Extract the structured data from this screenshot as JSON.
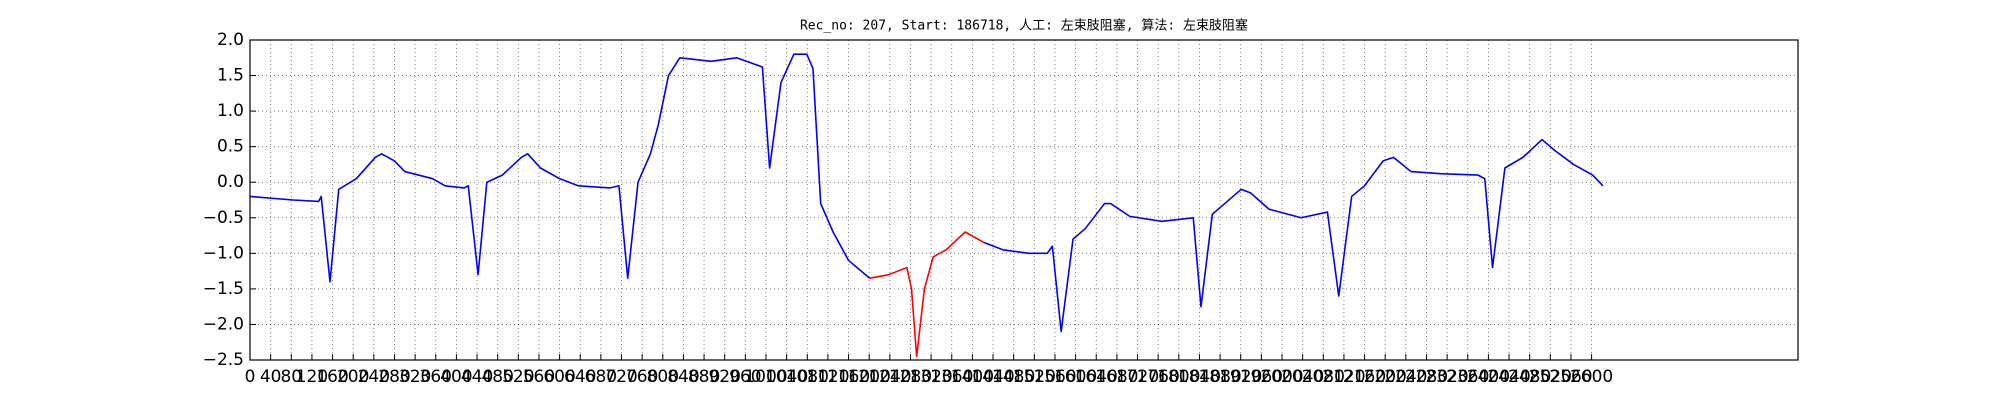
{
  "chart_data": {
    "type": "line",
    "title": "Rec_no: 207, Start: 186718, 人工: 左束肢阻塞, 算法: 左束肢阻塞",
    "x": [
      0,
      84,
      133,
      138,
      155,
      172,
      206,
      243,
      255,
      280,
      300,
      354,
      378,
      415,
      423,
      442,
      459,
      489,
      526,
      538,
      563,
      600,
      636,
      698,
      715,
      732,
      752,
      776,
      791,
      811,
      833,
      894,
      943,
      993,
      1007,
      1029,
      1054,
      1079,
      1091,
      1106,
      1130,
      1160,
      1201,
      1238,
      1273,
      1282,
      1292,
      1307,
      1324,
      1349,
      1386,
      1423,
      1459,
      1509,
      1545,
      1555,
      1572,
      1595,
      1619,
      1656,
      1668,
      1705,
      1767,
      1828,
      1843,
      1865,
      1889,
      1921,
      1939,
      1975,
      2037,
      2088,
      2110,
      2135,
      2160,
      2196,
      2216,
      2250,
      2307,
      2380,
      2393,
      2408,
      2432,
      2467,
      2504,
      2528,
      2565,
      2602,
      2622
    ],
    "series": [
      {
        "color": "#0000ff",
        "values": [
          -0.2,
          -0.25,
          -0.27,
          -0.2,
          -1.4,
          -0.1,
          0.05,
          0.35,
          0.4,
          0.3,
          0.15,
          0.05,
          -0.05,
          -0.08,
          -0.05,
          -1.3,
          0.0,
          0.1,
          0.35,
          0.4,
          0.2,
          0.05,
          -0.05,
          -0.08,
          -0.05,
          -1.35,
          0.0,
          0.4,
          0.8,
          1.5,
          1.75,
          1.7,
          1.75,
          1.62,
          0.2,
          1.4,
          1.8,
          1.8,
          1.6,
          -0.3,
          -0.7,
          -1.1,
          -1.35,
          null,
          null,
          null,
          null,
          null,
          null,
          null,
          null,
          -0.85,
          -0.95,
          -1.0,
          -1.0,
          -0.9,
          -2.1,
          -0.8,
          -0.65,
          -0.3,
          -0.3,
          -0.48,
          -0.55,
          -0.5,
          -1.75,
          -0.45,
          -0.3,
          -0.1,
          -0.15,
          -0.38,
          -0.5,
          -0.42,
          -1.6,
          -0.2,
          -0.05,
          0.3,
          0.35,
          0.15,
          0.12,
          0.1,
          0.05,
          -1.2,
          0.2,
          0.35,
          0.6,
          0.45,
          0.25,
          0.1,
          -0.05
        ]
      },
      {
        "color": "#ff0000",
        "values": [
          null,
          null,
          null,
          null,
          null,
          null,
          null,
          null,
          null,
          null,
          null,
          null,
          null,
          null,
          null,
          null,
          null,
          null,
          null,
          null,
          null,
          null,
          null,
          null,
          null,
          null,
          null,
          null,
          null,
          null,
          null,
          null,
          null,
          null,
          null,
          null,
          null,
          null,
          null,
          null,
          null,
          null,
          -1.35,
          -1.3,
          -1.2,
          -1.5,
          -2.45,
          -1.5,
          -1.05,
          -0.95,
          -0.7,
          -0.85,
          null,
          null,
          null,
          null,
          null,
          null,
          null,
          null,
          null,
          null,
          null,
          null,
          null,
          null,
          null,
          null,
          null,
          null,
          null,
          null,
          null,
          null,
          null,
          null,
          null,
          null,
          null,
          null,
          null,
          null,
          null,
          null,
          null,
          null,
          null,
          null,
          null
        ]
      }
    ],
    "xlim": [
      0,
      3000
    ],
    "xticks": [
      0,
      40,
      80,
      120,
      160,
      200,
      240,
      280,
      320,
      360,
      400,
      440,
      480,
      520,
      560,
      600,
      640,
      680,
      720,
      760,
      800,
      840,
      880,
      920,
      960,
      1000,
      1040,
      1080,
      1120,
      1160,
      1200,
      1240,
      1280,
      1320,
      1360,
      1400,
      1440,
      1480,
      1520,
      1560,
      1600,
      1640,
      1680,
      1720,
      1760,
      1800,
      1840,
      1880,
      1920,
      1960,
      2000,
      2040,
      2080,
      2120,
      2160,
      2200,
      2240,
      2280,
      2320,
      2360,
      2400,
      2440,
      2480,
      2520,
      2560,
      2600
    ],
    "ylim": [
      -2.5,
      2.0
    ],
    "yticks": [
      {
        "value": -2.5,
        "label": "−2.5"
      },
      {
        "value": -2.0,
        "label": "−2.0"
      },
      {
        "value": -1.5,
        "label": "−1.5"
      },
      {
        "value": -1.0,
        "label": "−1.0"
      },
      {
        "value": -0.5,
        "label": "−0.5"
      },
      {
        "value": 0,
        "label": "0.0"
      },
      0.5,
      {
        "value": 1.0,
        "label": "1.0"
      },
      1.5,
      {
        "value": 2.0,
        "label": "2.0"
      }
    ],
    "grid": true
  }
}
